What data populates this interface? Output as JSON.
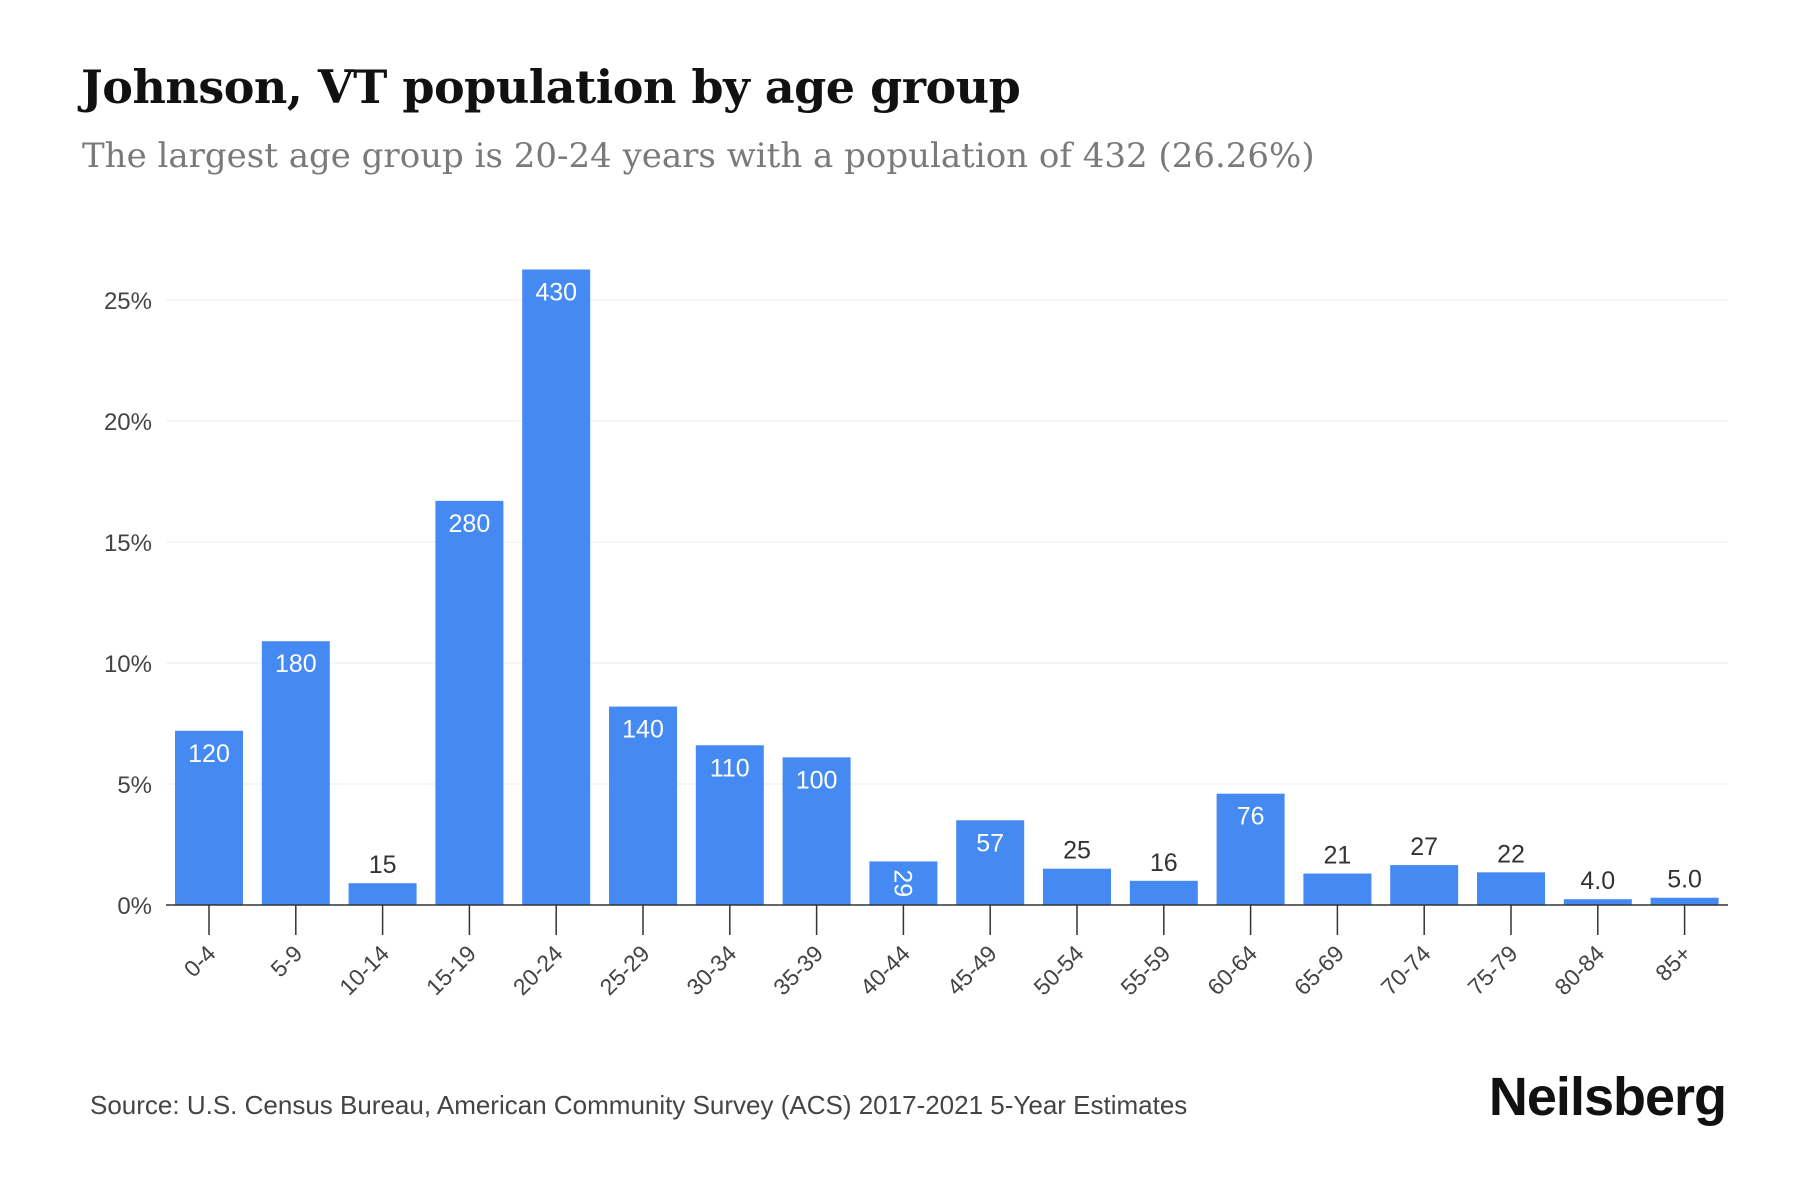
{
  "title": "Johnson, VT population by age group",
  "subtitle": "The largest age group is 20-24 years with a population of 432 (26.26%)",
  "source": "Source: U.S. Census Bureau, American Community Survey (ACS) 2017-2021 5-Year Estimates",
  "brand": "Neilsberg",
  "colors": {
    "bar": "#4589f3",
    "grid": "#ececec",
    "axis": "#333333"
  },
  "chart_data": {
    "type": "bar",
    "categories": [
      "0-4",
      "5-9",
      "10-14",
      "15-19",
      "20-24",
      "25-29",
      "30-34",
      "35-39",
      "40-44",
      "45-49",
      "50-54",
      "55-59",
      "60-64",
      "65-69",
      "70-74",
      "75-79",
      "80-84",
      "85+"
    ],
    "values": [
      7.2,
      10.9,
      0.9,
      16.7,
      26.26,
      8.2,
      6.6,
      6.1,
      1.8,
      3.5,
      1.5,
      1.0,
      4.6,
      1.3,
      1.65,
      1.35,
      0.24,
      0.3
    ],
    "data_labels": [
      "120",
      "180",
      "15",
      "280",
      "430",
      "140",
      "110",
      "100",
      "29",
      "57",
      "25",
      "16",
      "76",
      "21",
      "27",
      "22",
      "4.0",
      "5.0"
    ],
    "y_ticks": [
      "0%",
      "5%",
      "10%",
      "15%",
      "20%",
      "25%"
    ],
    "y_tick_values": [
      0,
      5,
      10,
      15,
      20,
      25
    ],
    "ylim": [
      0,
      27
    ],
    "grid": true,
    "xlabel": "",
    "ylabel": ""
  }
}
